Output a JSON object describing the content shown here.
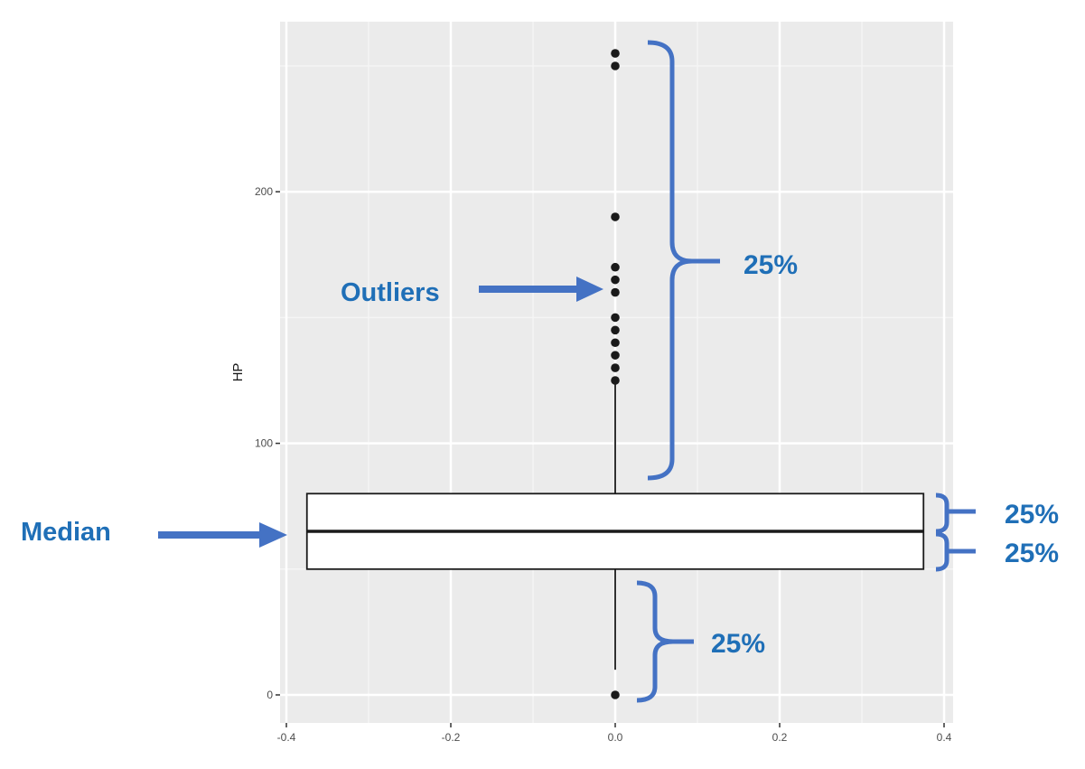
{
  "chart_data": {
    "type": "box",
    "ylabel": "HP",
    "xlabel": "",
    "xlim": [
      -0.4,
      0.4
    ],
    "ylim": [
      -10,
      260
    ],
    "x_ticks": [
      -0.4,
      -0.2,
      0.0,
      0.2,
      0.4
    ],
    "x_tick_labels": [
      "-0.4",
      "-0.2",
      "0.0",
      "0.2",
      "0.4"
    ],
    "y_ticks": [
      0,
      100,
      200
    ],
    "y_tick_labels": [
      "0",
      "100",
      "200"
    ],
    "grid": true,
    "box": {
      "x": 0.0,
      "x_range": [
        -0.375,
        0.375
      ],
      "whisker_low": 10,
      "q1": 50,
      "median": 65,
      "q3": 80,
      "whisker_high": 125
    },
    "outliers": [
      0,
      125,
      130,
      135,
      140,
      145,
      150,
      160,
      165,
      170,
      190,
      250,
      255
    ],
    "annotations": {
      "outliers_label": "Outliers",
      "median_label": "Median",
      "quartile_labels": [
        "25%",
        "25%",
        "25%",
        "25%"
      ]
    },
    "colors": {
      "panel": "#ebebeb",
      "grid_major": "#ffffff",
      "annotation": "#4472c4",
      "annotation_text": "#1f6fb7",
      "outlier": "#1a1a1a"
    }
  }
}
